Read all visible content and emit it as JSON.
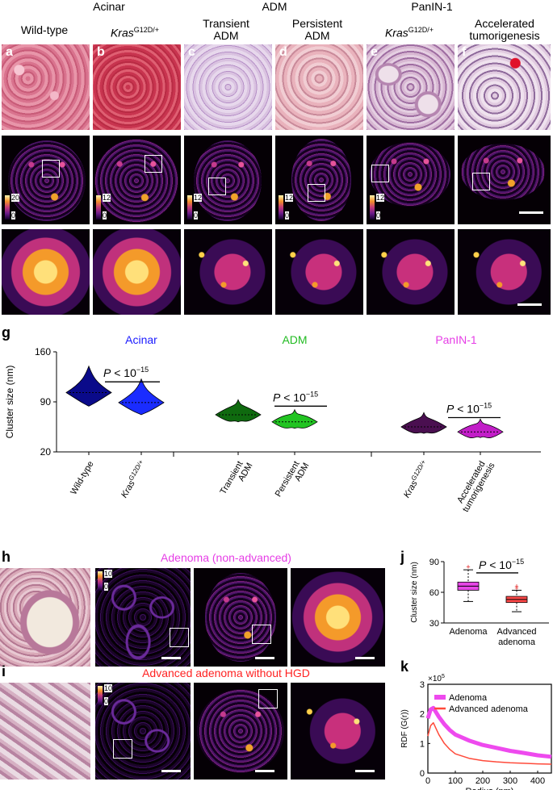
{
  "top": {
    "groups": [
      {
        "label": "Acinar",
        "color": "#1a1aff"
      },
      {
        "label": "ADM",
        "color": "#22bb22"
      },
      {
        "label": "PanIN-1",
        "color": "#e63ee6"
      }
    ],
    "columns": [
      {
        "line1": "Wild-type",
        "line2": ""
      },
      {
        "line1": "Kras",
        "sup": "G12D/+",
        "line2": ""
      },
      {
        "line1": "Transient",
        "line2": "ADM"
      },
      {
        "line1": "Persistent",
        "line2": "ADM"
      },
      {
        "line1": "Kras",
        "sup": "G12D/+",
        "line2": ""
      },
      {
        "line1": "Accelerated",
        "line2": "tumorigenesis"
      }
    ],
    "panel_letters": [
      "a",
      "b",
      "c",
      "d",
      "e",
      "f"
    ],
    "colorbar_labels": [
      [
        "20",
        "0"
      ],
      [
        "12",
        "0"
      ],
      [
        "12",
        "0"
      ],
      [
        "12",
        "0"
      ],
      [
        "12",
        "0"
      ]
    ]
  },
  "g": {
    "letter": "g",
    "groups": [
      {
        "label": "Acinar",
        "color": "#1a1aff"
      },
      {
        "label": "ADM",
        "color": "#22bb22"
      },
      {
        "label": "PanIN-1",
        "color": "#e63ee6"
      }
    ],
    "pvalue_prefix": "P < 10",
    "pvalue_exp": "−15",
    "chart_data": {
      "type": "violin",
      "ylabel": "Cluster size (nm)",
      "ylim": [
        20,
        160
      ],
      "yticks": [
        "160",
        "90",
        "20"
      ],
      "categories": [
        "Wild-type",
        "Kras G12D/+",
        "Transient ADM",
        "Persistent ADM",
        "Kras G12D/+",
        "Accelerated tumorigenesis"
      ],
      "xtick_labels": [
        {
          "l1": "Wild-type",
          "l2": ""
        },
        {
          "l1": "Kras",
          "sup": "G12D/+",
          "l2": ""
        },
        {
          "l1": "Transient",
          "l2": "ADM"
        },
        {
          "l1": "Persistent",
          "l2": "ADM"
        },
        {
          "l1": "Kras",
          "sup": "G12D/+",
          "l2": ""
        },
        {
          "l1": "Accelerated",
          "l2": "tumorigenesis"
        }
      ],
      "medians": [
        103,
        89,
        72,
        62,
        55,
        48
      ],
      "ranges": [
        [
          84,
          140
        ],
        [
          72,
          122
        ],
        [
          62,
          93
        ],
        [
          53,
          79
        ],
        [
          46,
          75
        ],
        [
          40,
          66
        ]
      ],
      "colors": [
        "#0a0a8a",
        "#1a2cff",
        "#0f6a0f",
        "#22c422",
        "#4a0f50",
        "#c21ec8"
      ]
    }
  },
  "h": {
    "letter": "h",
    "title": "Adenoma (non-advanced)",
    "title_color": "#e63ee6",
    "cb": [
      "10",
      "0"
    ]
  },
  "i": {
    "letter": "i",
    "title": "Advanced adenoma without HGD",
    "title_color": "#ff2222",
    "cb": [
      "10",
      "0"
    ]
  },
  "j": {
    "letter": "j",
    "pvalue_prefix": "P < 10",
    "pvalue_exp": "−15",
    "chart_data": {
      "type": "box",
      "ylabel": "Cluster size (nm)",
      "ylim": [
        30,
        90
      ],
      "yticks": [
        "90",
        "60",
        "30"
      ],
      "categories": [
        "Adenoma",
        "Advanced adenoma"
      ],
      "xtick_labels": [
        {
          "l1": "Adenoma",
          "l2": ""
        },
        {
          "l1": "Advanced",
          "l2": "adenoma"
        }
      ],
      "boxes": [
        {
          "q1": 62,
          "median": 66,
          "q3": 70,
          "whisker_low": 51,
          "whisker_high": 82,
          "outliers": [
            85
          ]
        },
        {
          "q1": 50,
          "median": 53,
          "q3": 56,
          "whisker_low": 41,
          "whisker_high": 62,
          "outliers": [
            64,
            66
          ]
        }
      ],
      "colors": [
        "#e646e6",
        "#ff4a4a"
      ]
    }
  },
  "k": {
    "letter": "k",
    "chart_data": {
      "type": "line",
      "xlabel": "Radius (nm)",
      "ylabel": "RDF (G(r))",
      "yscale_note": "×10",
      "yscale_exp": "5",
      "xlim": [
        0,
        450
      ],
      "ylim": [
        0,
        3
      ],
      "xticks": [
        "0",
        "100",
        "200",
        "300",
        "400"
      ],
      "yticks": [
        "0",
        "1",
        "2",
        "3"
      ],
      "series": [
        {
          "name": "Adenoma",
          "color": "#ee4aee",
          "x": [
            0,
            10,
            20,
            40,
            60,
            80,
            100,
            150,
            200,
            250,
            300,
            350,
            400,
            450
          ],
          "y": [
            1.85,
            2.15,
            2.2,
            1.9,
            1.65,
            1.45,
            1.3,
            1.1,
            0.95,
            0.85,
            0.75,
            0.68,
            0.6,
            0.55
          ]
        },
        {
          "name": "Advanced adenoma",
          "color": "#ff4a3a",
          "x": [
            0,
            10,
            20,
            40,
            60,
            80,
            100,
            150,
            200,
            250,
            300,
            350,
            400,
            450
          ],
          "y": [
            1.25,
            1.6,
            1.7,
            1.3,
            1.0,
            0.8,
            0.65,
            0.5,
            0.42,
            0.38,
            0.35,
            0.33,
            0.31,
            0.3
          ]
        }
      ]
    }
  }
}
